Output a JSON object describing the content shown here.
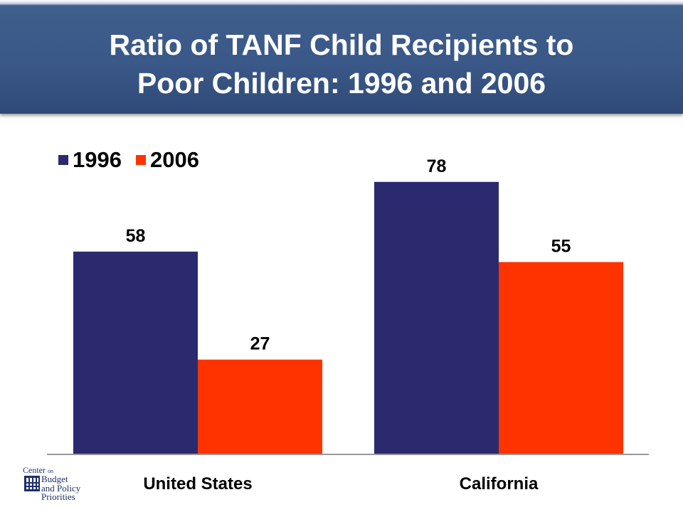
{
  "header": {
    "title_line1": "Ratio of TANF Child Recipients to",
    "title_line2": "Poor Children: 1996 and 2006"
  },
  "colors": {
    "header_bg": "#3a5888",
    "series_1996": "#2b2a6f",
    "series_2006": "#ff3300",
    "axis": "#999999",
    "logo": "#1e2f6b"
  },
  "chart_data": {
    "type": "bar",
    "title": "Ratio of TANF Child Recipients to Poor Children: 1996 and 2006",
    "categories": [
      "United States",
      "California"
    ],
    "series": [
      {
        "name": "1996",
        "values": [
          58,
          78
        ]
      },
      {
        "name": "2006",
        "values": [
          27,
          55
        ]
      }
    ],
    "xlabel": "",
    "ylabel": "",
    "ylim": [
      0,
      80
    ],
    "grid": false,
    "legend_position": "top-left",
    "data_labels": true
  },
  "logo": {
    "line1": "Center",
    "line1_small": "on",
    "line2": "Budget",
    "line3": "and Policy",
    "line4": "Priorities",
    "icon": "building-grid-icon"
  }
}
